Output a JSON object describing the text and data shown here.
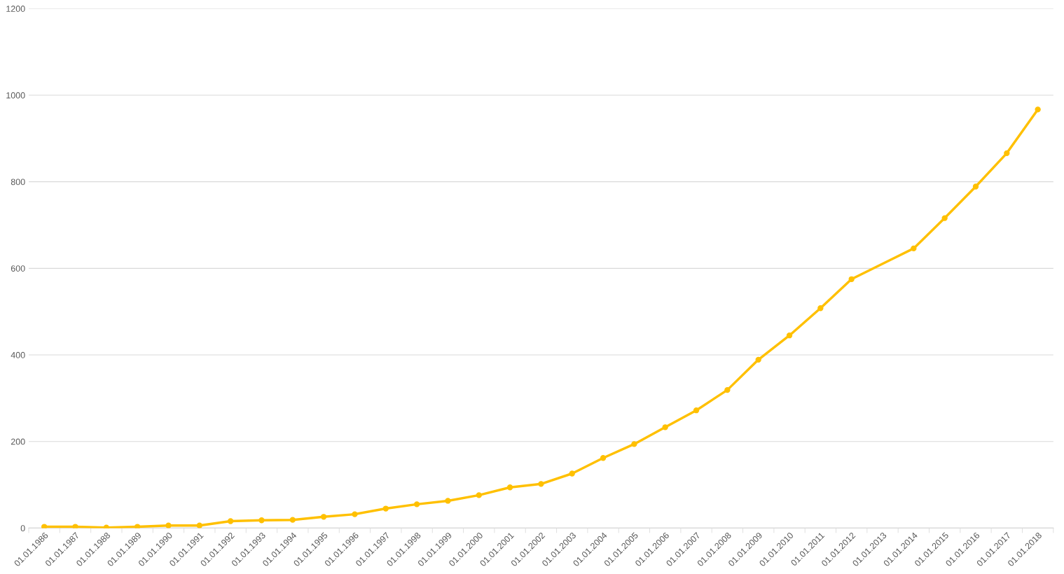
{
  "chart_data": {
    "type": "line",
    "categories": [
      "01.01.1986",
      "01.01.1987",
      "01.01.1988",
      "01.01.1989",
      "01.01.1990",
      "01.01.1991",
      "01.01.1992",
      "01.01.1993",
      "01.01.1994",
      "01.01.1995",
      "01.01.1996",
      "01.01.1997",
      "01.01.1998",
      "01.01.1999",
      "01.01.2000",
      "01.01.2001",
      "01.01.2002",
      "01.01.2003",
      "01.01.2004",
      "01.01.2005",
      "01.01.2006",
      "01.01.2007",
      "01.01.2008",
      "01.01.2009",
      "01.01.2010",
      "01.01.2011",
      "01.01.2012",
      "01.01.2013",
      "01.01.2014",
      "01.01.2015",
      "01.01.2016",
      "01.01.2017",
      "01.01.2018"
    ],
    "series": [
      {
        "color": "#ffc000",
        "values": [
          3,
          3,
          1,
          3,
          6,
          6,
          16,
          18,
          19,
          26,
          32,
          45,
          55,
          63,
          76,
          94,
          102,
          126,
          162,
          194,
          233,
          272,
          319,
          389,
          445,
          508,
          575,
          null,
          646,
          716,
          789,
          866,
          967
        ]
      }
    ],
    "ylim": [
      0,
      1200
    ],
    "yticks": [
      0,
      200,
      400,
      600,
      800,
      1000,
      1200
    ],
    "grid": "y",
    "marker": "circle",
    "line_style": "solid"
  }
}
